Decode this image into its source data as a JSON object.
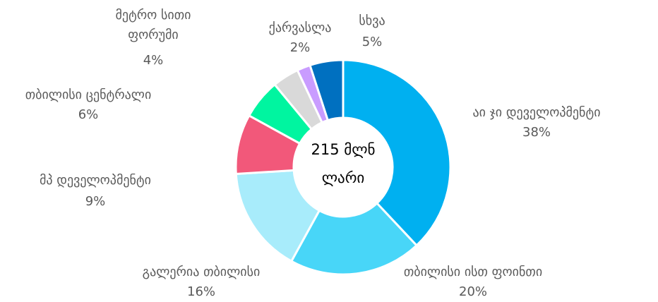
{
  "chart_data": {
    "type": "donut",
    "center_text": [
      "215 მლნ",
      "ლარი"
    ],
    "categories": [
      "აი ჯი დეველოპმენტი",
      "თბილისი ისთ ფოინთი",
      "გალერია თბილისი",
      "მპ დეველოპმენტი",
      "თბილისი ცენტრალი",
      "მეტრო სითი ფორუმი",
      "ქარვასლა",
      "სხვა"
    ],
    "values": [
      38,
      20,
      16,
      9,
      6,
      4,
      2,
      5
    ],
    "value_labels": [
      "38%",
      "20%",
      "16%",
      "9%",
      "6%",
      "4%",
      "2%",
      "5%"
    ],
    "colors": [
      "#00b0f0",
      "#48d6f8",
      "#a8ecfb",
      "#f2587a",
      "#00f5a0",
      "#d9d9d9",
      "#c99cff",
      "#0070c0"
    ]
  }
}
